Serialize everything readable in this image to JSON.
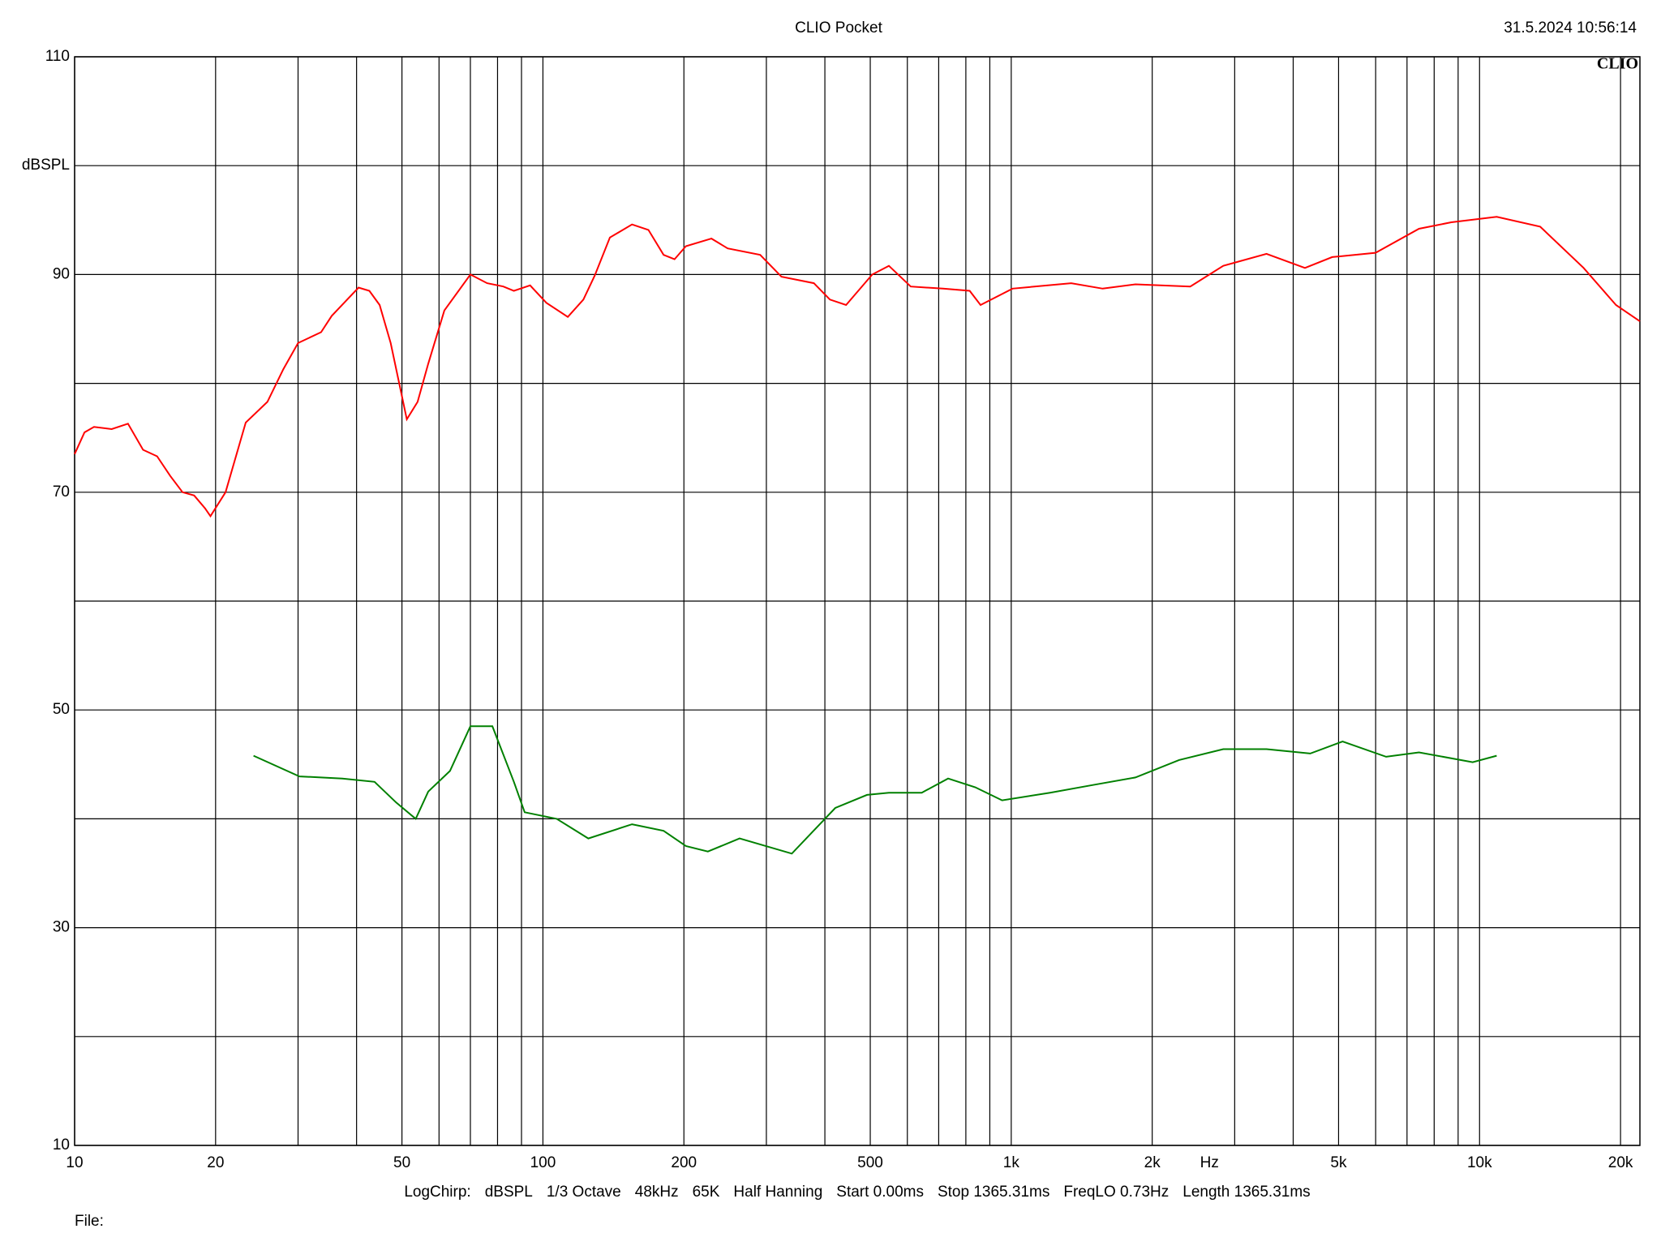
{
  "chart_data": {
    "type": "line",
    "title": "CLIO Pocket",
    "timestamp": "31.5.2024 10:56:14",
    "logo": "CLIO",
    "y_label": "dBSPL",
    "x_label": "Hz",
    "log_x": true,
    "xlim": [
      10,
      22000
    ],
    "ylim": [
      10,
      110
    ],
    "xticks": [
      10,
      20,
      50,
      100,
      200,
      500,
      {
        "value": 1000,
        "label": "1k"
      },
      {
        "value": 2000,
        "label": "2k"
      },
      {
        "value": 5000,
        "label": "5k"
      },
      {
        "value": 10000,
        "label": "10k"
      },
      {
        "value": 20000,
        "label": "20k"
      }
    ],
    "xgrid": [
      30,
      40,
      60,
      70,
      80,
      90,
      300,
      400,
      600,
      700,
      800,
      900,
      3000,
      4000,
      6000,
      7000,
      8000,
      9000
    ],
    "yticks": [
      10,
      30,
      50,
      70,
      90,
      110
    ],
    "ygrid": [
      20,
      40,
      60,
      80,
      100
    ],
    "footer": [
      "LogChirp:",
      "dBSPL",
      "1/3 Octave",
      "48kHz",
      "65K",
      "Half Hanning",
      "Start 0.00ms",
      "Stop 1365.31ms",
      "FreqLO 0.73Hz",
      "Length 1365.31ms"
    ],
    "file_label": "File:",
    "series": [
      {
        "color": "#ff0000",
        "x": [
          10,
          10.5,
          11,
          12,
          13,
          14,
          15,
          16,
          17,
          18,
          19,
          19.5,
          21,
          23.2,
          25.8,
          27.9,
          30,
          33.6,
          35.4,
          40.4,
          42.6,
          44.8,
          47.3,
          51.2,
          54,
          56.9,
          61.6,
          70,
          76,
          82.3,
          86.7,
          93.9,
          101.7,
          113,
          122,
          129,
          139,
          155,
          168,
          181,
          191,
          202,
          229,
          248,
          291,
          323,
          379,
          410,
          444,
          505,
          548,
          610,
          715,
          815,
          860,
          1006,
          1343,
          1568,
          1842,
          2412,
          2836,
          3508,
          4238,
          4846,
          5999,
          7425,
          8706,
          10880,
          13470,
          16680,
          19560,
          22000
        ],
        "values": [
          73.5,
          75.5,
          76,
          75.8,
          76.3,
          73.9,
          73.3,
          71.5,
          70,
          69.7,
          68.5,
          67.8,
          70,
          76.4,
          78.3,
          81.3,
          83.7,
          84.7,
          86.2,
          88.8,
          88.5,
          87.2,
          83.7,
          76.7,
          78.3,
          81.8,
          86.7,
          90,
          89.2,
          88.9,
          88.5,
          89,
          87.4,
          86.1,
          87.7,
          89.9,
          93.4,
          94.6,
          94.1,
          91.8,
          91.4,
          92.6,
          93.3,
          92.4,
          91.8,
          89.8,
          89.2,
          87.7,
          87.2,
          90,
          90.8,
          88.9,
          88.7,
          88.5,
          87.2,
          88.7,
          89.2,
          88.7,
          89.1,
          88.9,
          90.8,
          91.9,
          90.6,
          91.6,
          92,
          94.2,
          94.8,
          95.3,
          94.4,
          90.6,
          87.2,
          85.7
        ]
      },
      {
        "color": "#008000",
        "x": [
          24.1,
          30.2,
          37.3,
          43.7,
          48.6,
          53.5,
          56.9,
          63.3,
          70,
          78,
          86.7,
          91.4,
          107,
          125,
          155,
          181,
          202,
          225,
          263,
          340,
          421,
          492,
          548,
          644,
          733,
          838,
          956,
          1210,
          1490,
          1842,
          2282,
          2836,
          3508,
          4350,
          5100,
          6318,
          7425,
          9667,
          10880
        ],
        "values": [
          45.8,
          43.9,
          43.7,
          43.4,
          41.5,
          40,
          42.5,
          44.4,
          48.5,
          48.5,
          43.4,
          40.6,
          40,
          38.2,
          39.5,
          38.9,
          37.5,
          37,
          38.2,
          36.8,
          41,
          42.2,
          42.4,
          42.4,
          43.7,
          42.9,
          41.7,
          42.4,
          43.1,
          43.8,
          45.4,
          46.4,
          46.4,
          46,
          47.1,
          45.7,
          46.1,
          45.2,
          45.8
        ]
      }
    ]
  }
}
